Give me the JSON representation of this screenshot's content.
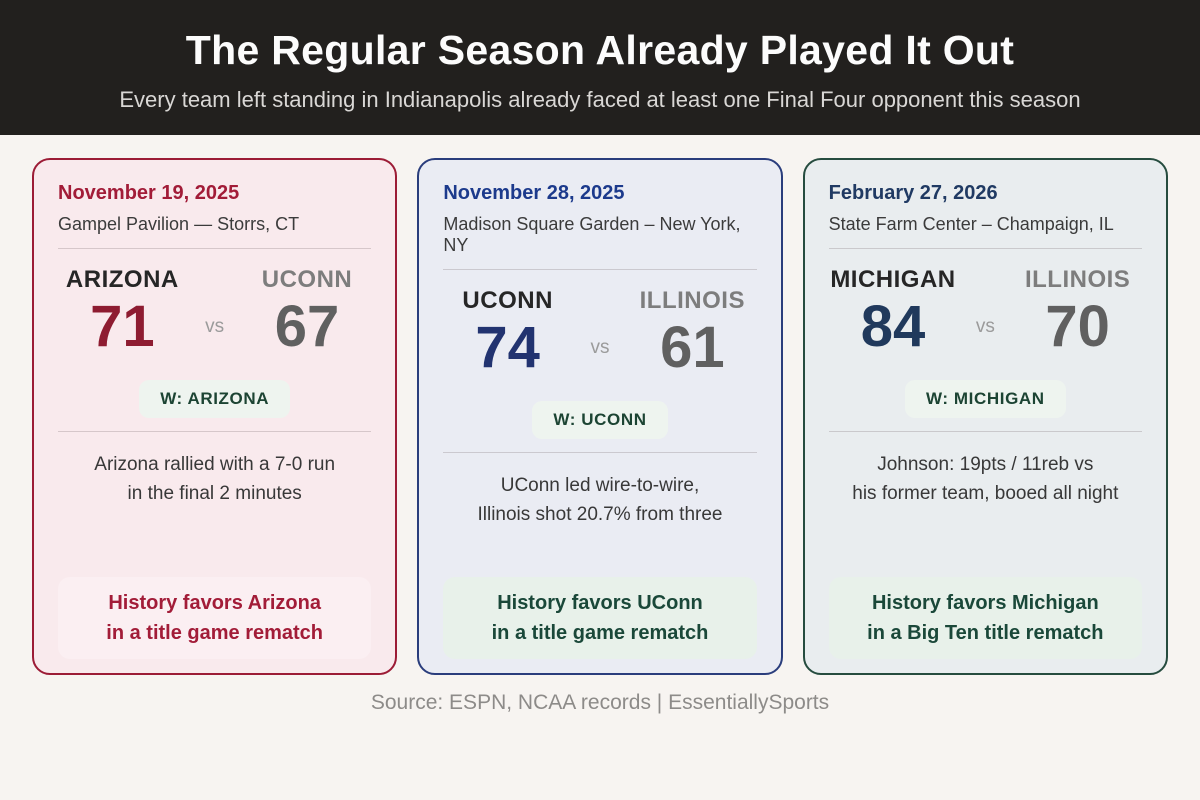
{
  "header": {
    "title": "The Regular Season Already Played It Out",
    "subtitle": "Every team left standing in Indianapolis already faced at least one Final Four opponent this season",
    "bg": "#22201e"
  },
  "palette": {
    "winner_bg": "#eef4ef",
    "winner_text": "#1c4433"
  },
  "cards": [
    {
      "date": "November 19, 2025",
      "venue": "Gampel Pavilion — Storrs, CT",
      "home_team": "ARIZONA",
      "home_score": "71",
      "vs_label": "vs",
      "away_team": "UCONN",
      "away_score": "67",
      "winner_label": "W: ARIZONA",
      "note_line1": "Arizona rallied with a 7-0 run",
      "note_line2": "in the final 2 minutes",
      "takeaway_line1": "History favors Arizona",
      "takeaway_line2": "in a title game rematch",
      "colors": {
        "border": "#9c1c36",
        "bg": "#f9eaed",
        "accent": "#a21c38",
        "score": "#8e1c31",
        "takeaway_bg": "#fbeff2",
        "takeaway_text": "#a21c38"
      }
    },
    {
      "date": "November 28, 2025",
      "venue": "Madison Square Garden – New York, NY",
      "home_team": "UCONN",
      "home_score": "74",
      "vs_label": "vs",
      "away_team": "ILLINOIS",
      "away_score": "61",
      "winner_label": "W: UCONN",
      "note_line1": "UConn led wire-to-wire,",
      "note_line2": "Illinois shot 20.7% from three",
      "takeaway_line1": "History favors UConn",
      "takeaway_line2": "in a title game rematch",
      "colors": {
        "border": "#2a3d7c",
        "bg": "#eaecf3",
        "accent": "#1c3a8c",
        "score": "#223370",
        "takeaway_bg": "#e8f1ea",
        "takeaway_text": "#1a4839"
      }
    },
    {
      "date": "February 27, 2026",
      "venue": "State Farm Center – Champaign, IL",
      "home_team": "MICHIGAN",
      "home_score": "84",
      "vs_label": "vs",
      "away_team": "ILLINOIS",
      "away_score": "70",
      "winner_label": "W: MICHIGAN",
      "note_line1": "Johnson: 19pts / 11reb vs",
      "note_line2": "his former team, booed all night",
      "takeaway_line1": "History favors Michigan",
      "takeaway_line2": "in a Big Ten title rematch",
      "colors": {
        "border": "#264c3f",
        "bg": "#e9edef",
        "accent": "#203a63",
        "score": "#20395c",
        "takeaway_bg": "#e8f1ea",
        "takeaway_text": "#1a4839"
      }
    }
  ],
  "footer": {
    "source": "Source: ESPN, NCAA records  |  EssentiallySports"
  },
  "chart_data": {
    "type": "table",
    "title": "The Regular Season Already Played It Out",
    "columns": [
      "date",
      "venue",
      "winner",
      "winner_score",
      "loser",
      "loser_score"
    ],
    "rows": [
      [
        "November 19, 2025",
        "Gampel Pavilion — Storrs, CT",
        "ARIZONA",
        71,
        "UCONN",
        67
      ],
      [
        "November 28, 2025",
        "Madison Square Garden – New York, NY",
        "UCONN",
        74,
        "ILLINOIS",
        61
      ],
      [
        "February 27, 2026",
        "State Farm Center – Champaign, IL",
        "MICHIGAN",
        84,
        "ILLINOIS",
        70
      ]
    ]
  }
}
